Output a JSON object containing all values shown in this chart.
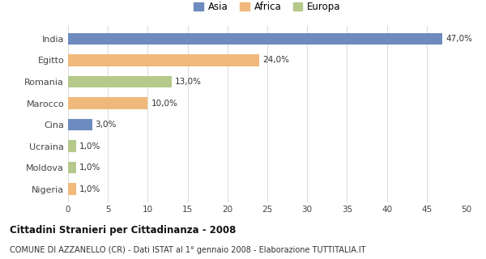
{
  "countries": [
    "India",
    "Egitto",
    "Romania",
    "Marocco",
    "Cina",
    "Ucraina",
    "Moldova",
    "Nigeria"
  ],
  "values": [
    47.0,
    24.0,
    13.0,
    10.0,
    3.0,
    1.0,
    1.0,
    1.0
  ],
  "colors": [
    "#6d8bbf",
    "#f0b87a",
    "#b5c98a",
    "#f0b87a",
    "#6d8bbf",
    "#b5c98a",
    "#b5c98a",
    "#f0b87a"
  ],
  "continents": [
    "Asia",
    "Africa",
    "Europa"
  ],
  "legend_colors": [
    "#6d8bbf",
    "#f0b87a",
    "#b5c98a"
  ],
  "title1": "Cittadini Stranieri per Cittadinanza - 2008",
  "title2": "COMUNE DI AZZANELLO (CR) - Dati ISTAT al 1° gennaio 2008 - Elaborazione TUTTITALIA.IT",
  "xlim": [
    0,
    50
  ],
  "xticks": [
    0,
    5,
    10,
    15,
    20,
    25,
    30,
    35,
    40,
    45,
    50
  ],
  "background_color": "#ffffff",
  "grid_color": "#dddddd"
}
